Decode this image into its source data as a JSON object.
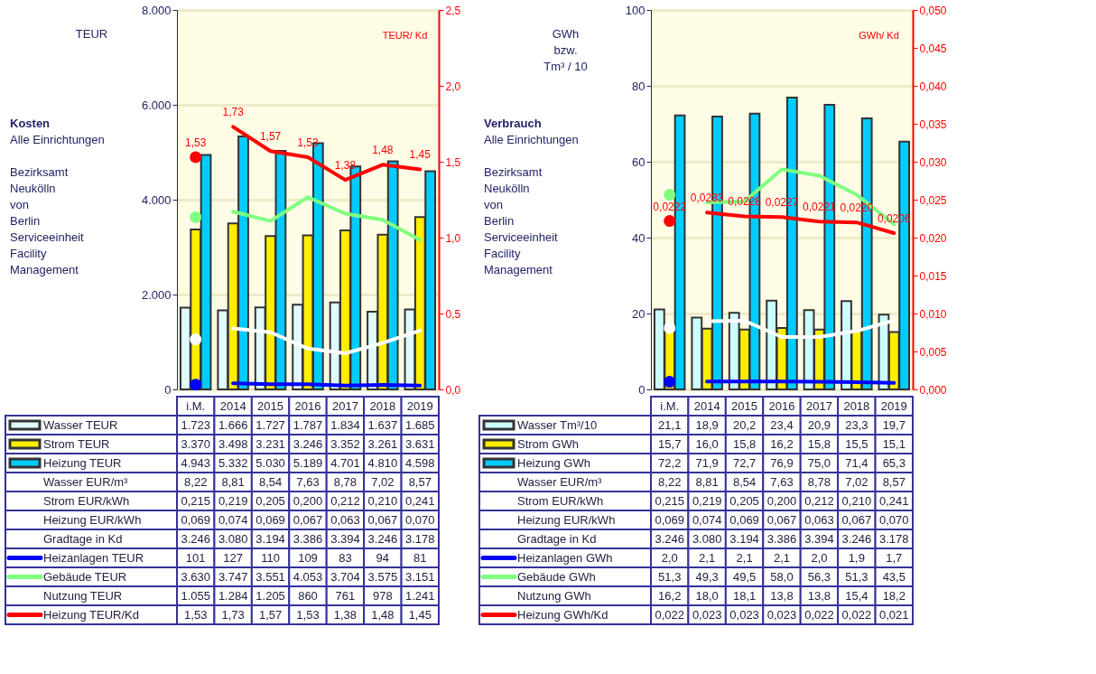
{
  "chart_data": [
    {
      "type": "bar",
      "ylabel": "TEUR",
      "y2label": "TEUR/ Kd",
      "legend": "bottom",
      "annotations": [
        "Kosten",
        "Alle Einrichtungen",
        "Bezirksamt\nNeukölln\nvon\nBerlin\nServiceeinheit\nFacility\nManagement"
      ],
      "categories": [
        "i.M.",
        "2014",
        "2015",
        "2016",
        "2017",
        "2018",
        "2019"
      ],
      "ylim": [
        0,
        8000
      ],
      "yticks": [
        0,
        {
          "value": 2000,
          "label": "2.000"
        },
        {
          "value": 4000,
          "label": "4.000"
        },
        {
          "value": 6000,
          "label": "6.000"
        },
        {
          "value": 8000,
          "label": "8.000"
        }
      ],
      "y2lim": [
        0,
        2.5
      ],
      "y2ticks": [
        {
          "value": 0,
          "label": "0,0"
        },
        {
          "value": 0.5,
          "label": "0,5"
        },
        {
          "value": 1.0,
          "label": "1,0"
        },
        {
          "value": 1.5,
          "label": "1,5"
        },
        {
          "value": 2.0,
          "label": "2,0"
        },
        {
          "value": 2.5,
          "label": "2,5"
        }
      ],
      "grid": "y",
      "series": [
        {
          "name": "Wasser TEUR",
          "color": "#e0fbfb",
          "values": [
            1723,
            1666,
            1727,
            1787,
            1834,
            1637,
            1685
          ],
          "value_labels": [
            "1.723",
            "1.666",
            "1.727",
            "1.787",
            "1.834",
            "1.637",
            "1.685"
          ]
        },
        {
          "name": "Strom TEUR",
          "color": "#ffee00",
          "values": [
            3370,
            3498,
            3231,
            3246,
            3352,
            3261,
            3631
          ],
          "value_labels": [
            "3.370",
            "3.498",
            "3.231",
            "3.246",
            "3.352",
            "3.261",
            "3.631"
          ]
        },
        {
          "name": "Heizung TEUR",
          "color": "#00ccff",
          "values": [
            4943,
            5332,
            5030,
            5189,
            4701,
            4810,
            4598
          ],
          "value_labels": [
            "4.943",
            "5.332",
            "5.030",
            "5.189",
            "4.701",
            "4.810",
            "4.598"
          ]
        },
        {
          "name": "Wasser EUR/m³",
          "type": "other",
          "values": [
            null,
            null,
            null,
            null,
            null,
            null,
            null
          ],
          "value_labels": [
            "8,22",
            "8,81",
            "8,54",
            "7,63",
            "8,78",
            "7,02",
            "8,57"
          ]
        },
        {
          "name": "Strom EUR/kWh",
          "type": "other",
          "values": [
            null,
            null,
            null,
            null,
            null,
            null,
            null
          ],
          "value_labels": [
            "0,215",
            "0,219",
            "0,205",
            "0,200",
            "0,212",
            "0,210",
            "0,241"
          ]
        },
        {
          "name": "Heizung EUR/kWh",
          "type": "other",
          "values": [
            null,
            null,
            null,
            null,
            null,
            null,
            null
          ],
          "value_labels": [
            "0,069",
            "0,074",
            "0,069",
            "0,067",
            "0,063",
            "0,067",
            "0,070"
          ]
        },
        {
          "name": "Gradtage in Kd",
          "type": "other",
          "values": [
            null,
            null,
            null,
            null,
            null,
            null,
            null
          ],
          "value_labels": [
            "3.246",
            "3.080",
            "3.194",
            "3.386",
            "3.394",
            "3.246",
            "3.178"
          ]
        },
        {
          "name": "Heizanlagen TEUR",
          "type": "line",
          "color": "#0000ff",
          "values": [
            null,
            127,
            110,
            109,
            83,
            94,
            81
          ],
          "value_labels": [
            "101",
            "127",
            "110",
            "109",
            "83",
            "94",
            "81"
          ]
        },
        {
          "type": "scatter",
          "color": "#0000ff",
          "values": [
            101,
            null,
            null,
            null,
            null,
            null,
            null
          ]
        },
        {
          "name": "Gebäude TEUR",
          "type": "line",
          "color": "#80ff80",
          "values": [
            null,
            3747,
            3551,
            4053,
            3704,
            3575,
            3151
          ],
          "value_labels": [
            "3.630",
            "3.747",
            "3.551",
            "4.053",
            "3.704",
            "3.575",
            "3.151"
          ]
        },
        {
          "type": "scatter",
          "color": "#80ff80",
          "values": [
            3630,
            null,
            null,
            null,
            null,
            null,
            null
          ]
        },
        {
          "name": "Nutzung TEUR",
          "type": "line",
          "color": "#ffffff",
          "values": [
            null,
            1284,
            1205,
            860,
            761,
            978,
            1241
          ],
          "value_labels": [
            "1.055",
            "1.284",
            "1.205",
            "860",
            "761",
            "978",
            "1.241"
          ]
        },
        {
          "type": "scatter",
          "color": "#ffffff",
          "values": [
            1055,
            null,
            null,
            null,
            null,
            null,
            null
          ]
        },
        {
          "type": "line",
          "axis": "y2",
          "color": "#ff0000",
          "values": [
            null,
            1.73,
            1.57,
            1.53,
            1.38,
            1.48,
            1.45
          ],
          "value_labels": [
            null,
            "1,73",
            "1,57",
            "1,53",
            "1,38",
            "1,48",
            "1,45"
          ]
        },
        {
          "type": "scatter",
          "axis": "y2",
          "color": "#ff0000",
          "values": [
            1.53,
            null,
            null,
            null,
            null,
            null,
            null
          ],
          "value_labels": [
            "1,53",
            null,
            null,
            null,
            null,
            null,
            null
          ]
        },
        {
          "name": "Heizung TEUR/Kd",
          "type": "other",
          "color": "#ff0000",
          "values": [
            null,
            null,
            null,
            null,
            null,
            null,
            null
          ],
          "value_labels": [
            "1,53",
            "1,73",
            "1,57",
            "1,53",
            "1,38",
            "1,48",
            "1,45"
          ]
        }
      ]
    },
    {
      "type": "bar",
      "ylabel": "GWh\nbzw.\nTm³ / 10",
      "y2label": "GWh/ Kd",
      "legend": "bottom",
      "annotations": [
        "Verbrauch",
        "Alle Einrichtungen",
        "Bezirksamt\nNeukölln\nvon\nBerlin\nServiceeinheit\nFacility\nManagement"
      ],
      "categories": [
        "i.M.",
        "2014",
        "2015",
        "2016",
        "2017",
        "2018",
        "2019"
      ],
      "ylim": [
        0,
        100
      ],
      "yticks": [
        0,
        20,
        40,
        60,
        80,
        100
      ],
      "y2lim": [
        0,
        0.05
      ],
      "y2ticks": [
        {
          "value": 0,
          "label": "0,000"
        },
        {
          "value": 0.005,
          "label": "0,005"
        },
        {
          "value": 0.01,
          "label": "0,010"
        },
        {
          "value": 0.015,
          "label": "0,015"
        },
        {
          "value": 0.02,
          "label": "0,020"
        },
        {
          "value": 0.025,
          "label": "0,025"
        },
        {
          "value": 0.03,
          "label": "0,030"
        },
        {
          "value": 0.035,
          "label": "0,035"
        },
        {
          "value": 0.04,
          "label": "0,040"
        },
        {
          "value": 0.045,
          "label": "0,045"
        },
        {
          "value": 0.05,
          "label": "0,050"
        }
      ],
      "grid": "y",
      "series": [
        {
          "name": "Wasser Tm³/10",
          "color": "#ccffff",
          "values": [
            21.1,
            18.9,
            20.2,
            23.4,
            20.9,
            23.3,
            19.7
          ],
          "value_labels": [
            "21,1",
            "18,9",
            "20,2",
            "23,4",
            "20,9",
            "23,3",
            "19,7"
          ]
        },
        {
          "name": "Strom GWh",
          "color": "#ffee00",
          "values": [
            15.7,
            16.0,
            15.8,
            16.2,
            15.8,
            15.5,
            15.1
          ],
          "value_labels": [
            "15,7",
            "16,0",
            "15,8",
            "16,2",
            "15,8",
            "15,5",
            "15,1"
          ]
        },
        {
          "name": "Heizung GWh",
          "color": "#00ccff",
          "values": [
            72.2,
            71.9,
            72.7,
            76.9,
            75.0,
            71.4,
            65.3
          ],
          "value_labels": [
            "72,2",
            "71,9",
            "72,7",
            "76,9",
            "75,0",
            "71,4",
            "65,3"
          ]
        },
        {
          "name": "Wasser EUR/m³",
          "type": "other",
          "values": [
            null,
            null,
            null,
            null,
            null,
            null,
            null
          ],
          "value_labels": [
            "8,22",
            "8,81",
            "8,54",
            "7,63",
            "8,78",
            "7,02",
            "8,57"
          ]
        },
        {
          "name": "Strom EUR/kWh",
          "type": "other",
          "values": [
            null,
            null,
            null,
            null,
            null,
            null,
            null
          ],
          "value_labels": [
            "0,215",
            "0,219",
            "0,205",
            "0,200",
            "0,212",
            "0,210",
            "0,241"
          ]
        },
        {
          "name": "Heizung EUR/kWh",
          "type": "other",
          "values": [
            null,
            null,
            null,
            null,
            null,
            null,
            null
          ],
          "value_labels": [
            "0,069",
            "0,074",
            "0,069",
            "0,067",
            "0,063",
            "0,067",
            "0,070"
          ]
        },
        {
          "name": "Gradtage in Kd",
          "type": "other",
          "values": [
            null,
            null,
            null,
            null,
            null,
            null,
            null
          ],
          "value_labels": [
            "3.246",
            "3.080",
            "3.194",
            "3.386",
            "3.394",
            "3.246",
            "3.178"
          ]
        },
        {
          "name": "Heizanlagen GWh",
          "type": "line",
          "color": "#0000ff",
          "values": [
            null,
            2.1,
            2.1,
            2.1,
            2.0,
            1.9,
            1.7
          ],
          "value_labels": [
            "2,0",
            "2,1",
            "2,1",
            "2,1",
            "2,0",
            "1,9",
            "1,7"
          ]
        },
        {
          "type": "scatter",
          "color": "#0000ff",
          "values": [
            2.0,
            null,
            null,
            null,
            null,
            null,
            null
          ]
        },
        {
          "name": "Gebäude GWh",
          "type": "line",
          "color": "#80ff80",
          "values": [
            null,
            49.3,
            49.5,
            58.0,
            56.3,
            51.3,
            43.5
          ],
          "value_labels": [
            "51,3",
            "49,3",
            "49,5",
            "58,0",
            "56,3",
            "51,3",
            "43,5"
          ]
        },
        {
          "type": "scatter",
          "color": "#80ff80",
          "values": [
            51.3,
            null,
            null,
            null,
            null,
            null,
            null
          ]
        },
        {
          "name": "Nutzung GWh",
          "type": "line",
          "color": "#ffffff",
          "values": [
            null,
            18.0,
            18.1,
            13.8,
            13.8,
            15.4,
            18.2
          ],
          "value_labels": [
            "16,2",
            "18,0",
            "18,1",
            "13,8",
            "13,8",
            "15,4",
            "18,2"
          ]
        },
        {
          "type": "scatter",
          "color": "#ffffff",
          "values": [
            16.2,
            null,
            null,
            null,
            null,
            null,
            null
          ]
        },
        {
          "type": "line",
          "axis": "y2",
          "color": "#ff0000",
          "values": [
            null,
            0.0233,
            0.0228,
            0.0227,
            0.0221,
            0.022,
            0.0206
          ],
          "value_labels": [
            null,
            "0,0233",
            "0,0228",
            "0,0227",
            "0,0221",
            "0,0220",
            "0,0206"
          ]
        },
        {
          "type": "scatter",
          "axis": "y2",
          "color": "#ff0000",
          "values": [
            0.0222,
            null,
            null,
            null,
            null,
            null,
            null
          ],
          "value_labels": [
            "0,0222",
            null,
            null,
            null,
            null,
            null,
            null
          ]
        },
        {
          "name": "Heizung GWh/Kd",
          "type": "other",
          "color": "#ff0000",
          "values": [
            null,
            null,
            null,
            null,
            null,
            null,
            null
          ],
          "value_labels": [
            "0,022",
            "0,023",
            "0,023",
            "0,023",
            "0,022",
            "0,022",
            "0,021"
          ]
        }
      ]
    }
  ]
}
